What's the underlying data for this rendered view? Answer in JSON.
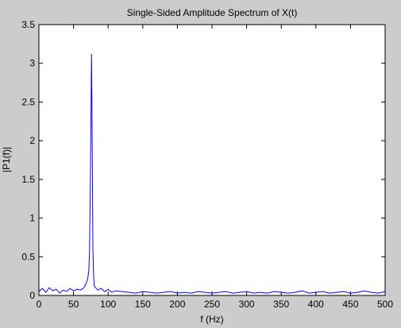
{
  "chart_data": {
    "type": "line",
    "title": "Single-Sided Amplitude Spectrum of X(t)",
    "xlabel": "f (Hz)",
    "ylabel": "|P1(f)|",
    "xlim": [
      0,
      500
    ],
    "ylim": [
      0,
      3.5
    ],
    "xticks": [
      0,
      50,
      100,
      150,
      200,
      250,
      300,
      350,
      400,
      450,
      500
    ],
    "yticks": [
      0,
      0.5,
      1,
      1.5,
      2,
      2.5,
      3,
      3.5
    ],
    "grid": false,
    "series": [
      {
        "color": "#0000ff",
        "x": [
          0,
          5,
          10,
          15,
          20,
          25,
          30,
          35,
          40,
          45,
          50,
          55,
          60,
          65,
          68,
          70,
          72,
          73,
          74,
          75,
          76,
          77,
          78,
          79,
          80,
          82,
          85,
          90,
          95,
          100,
          105,
          110,
          120,
          130,
          140,
          150,
          160,
          170,
          180,
          190,
          200,
          210,
          220,
          230,
          240,
          250,
          260,
          270,
          280,
          290,
          300,
          310,
          320,
          330,
          340,
          350,
          360,
          370,
          380,
          390,
          400,
          410,
          420,
          430,
          440,
          450,
          460,
          470,
          480,
          490,
          500
        ],
        "y": [
          0.05,
          0.09,
          0.04,
          0.1,
          0.06,
          0.08,
          0.03,
          0.07,
          0.05,
          0.09,
          0.06,
          0.08,
          0.07,
          0.1,
          0.15,
          0.2,
          0.3,
          0.55,
          1.2,
          2.1,
          3.12,
          2.05,
          0.6,
          0.25,
          0.12,
          0.1,
          0.07,
          0.09,
          0.05,
          0.08,
          0.04,
          0.06,
          0.05,
          0.04,
          0.03,
          0.05,
          0.04,
          0.03,
          0.04,
          0.05,
          0.03,
          0.04,
          0.03,
          0.05,
          0.04,
          0.03,
          0.04,
          0.05,
          0.03,
          0.04,
          0.05,
          0.03,
          0.04,
          0.03,
          0.05,
          0.04,
          0.03,
          0.04,
          0.06,
          0.03,
          0.04,
          0.05,
          0.03,
          0.04,
          0.05,
          0.03,
          0.04,
          0.06,
          0.04,
          0.03,
          0.05
        ]
      }
    ]
  }
}
